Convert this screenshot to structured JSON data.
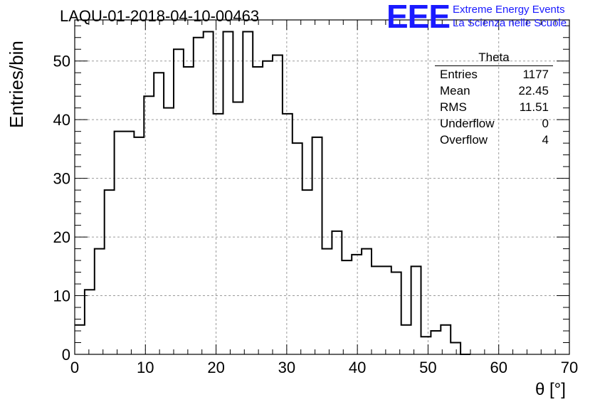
{
  "chart_data": {
    "type": "histogram",
    "title": "LAQU-01-2018-04-10-00463",
    "xlabel": "θ [°]",
    "ylabel": "Entries/bin",
    "xlim": [
      0,
      70
    ],
    "ylim": [
      0,
      57
    ],
    "bin_width": 1.4,
    "xticks": [
      "0",
      "10",
      "20",
      "30",
      "40",
      "50",
      "60",
      "70"
    ],
    "yticks": [
      "0",
      "10",
      "20",
      "30",
      "40",
      "50"
    ],
    "grid": true,
    "bins": [
      {
        "x": 0.0,
        "value": 5
      },
      {
        "x": 1.4,
        "value": 11
      },
      {
        "x": 2.8,
        "value": 18
      },
      {
        "x": 4.2,
        "value": 28
      },
      {
        "x": 5.6,
        "value": 38
      },
      {
        "x": 7.0,
        "value": 38
      },
      {
        "x": 8.4,
        "value": 37
      },
      {
        "x": 9.8,
        "value": 44
      },
      {
        "x": 11.2,
        "value": 48
      },
      {
        "x": 12.6,
        "value": 42
      },
      {
        "x": 14.0,
        "value": 52
      },
      {
        "x": 15.4,
        "value": 49
      },
      {
        "x": 16.8,
        "value": 54
      },
      {
        "x": 18.2,
        "value": 55
      },
      {
        "x": 19.6,
        "value": 41
      },
      {
        "x": 21.0,
        "value": 55
      },
      {
        "x": 22.4,
        "value": 43
      },
      {
        "x": 23.8,
        "value": 55
      },
      {
        "x": 25.2,
        "value": 49
      },
      {
        "x": 26.6,
        "value": 50
      },
      {
        "x": 28.0,
        "value": 51
      },
      {
        "x": 29.4,
        "value": 41
      },
      {
        "x": 30.8,
        "value": 36
      },
      {
        "x": 32.2,
        "value": 28
      },
      {
        "x": 33.6,
        "value": 37
      },
      {
        "x": 35.0,
        "value": 18
      },
      {
        "x": 36.4,
        "value": 21
      },
      {
        "x": 37.8,
        "value": 16
      },
      {
        "x": 39.2,
        "value": 17
      },
      {
        "x": 40.6,
        "value": 18
      },
      {
        "x": 42.0,
        "value": 15
      },
      {
        "x": 43.4,
        "value": 15
      },
      {
        "x": 44.8,
        "value": 14
      },
      {
        "x": 46.2,
        "value": 5
      },
      {
        "x": 47.6,
        "value": 15
      },
      {
        "x": 49.0,
        "value": 3
      },
      {
        "x": 50.4,
        "value": 4
      },
      {
        "x": 51.8,
        "value": 5
      },
      {
        "x": 53.2,
        "value": 2
      },
      {
        "x": 54.6,
        "value": 0
      }
    ],
    "stats": {
      "title": "Theta",
      "rows": [
        {
          "label": "Entries",
          "value": "1177"
        },
        {
          "label": "Mean",
          "value": "22.45"
        },
        {
          "label": "RMS",
          "value": "11.51"
        },
        {
          "label": "Underflow",
          "value": "0"
        },
        {
          "label": "Overflow",
          "value": "4"
        }
      ]
    }
  },
  "logo": {
    "mark": "EEE",
    "line1": "Extreme Energy Events",
    "line2": "La Scienza nelle Scuole"
  },
  "colors": {
    "line": "#000000",
    "grid": "#9a9a9a",
    "logo": "#1a1aff"
  }
}
